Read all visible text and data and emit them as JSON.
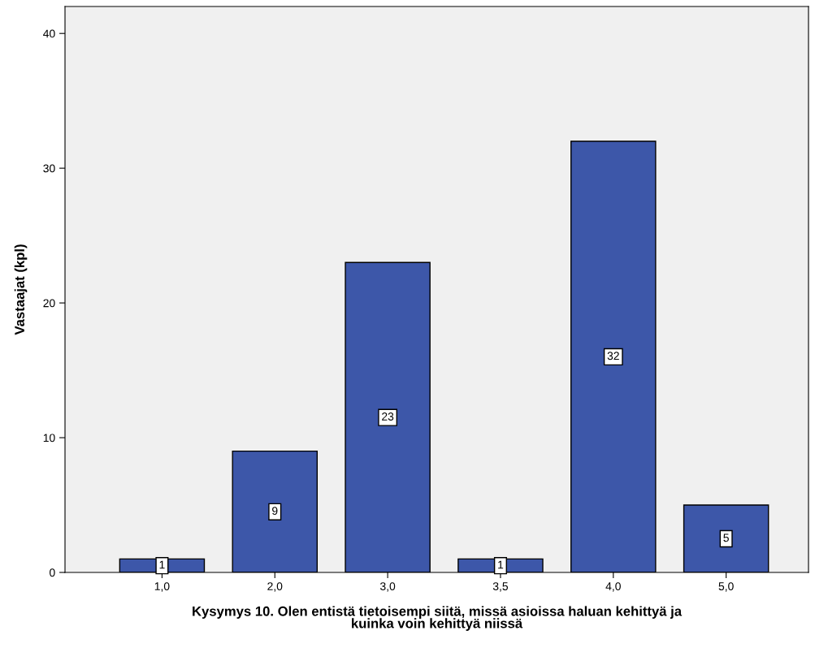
{
  "chart_data": {
    "type": "bar",
    "xlabel": "Kysymys 10. Olen entistä tietoisempi siitä, missä asioissa haluan kehittyä ja\nkuinka voin kehittyä niissä",
    "ylabel": "Vastaajat (kpl)",
    "categories": [
      "1,0",
      "2,0",
      "3,0",
      "3,5",
      "4,0",
      "5,0"
    ],
    "values": [
      1,
      9,
      23,
      1,
      32,
      5
    ],
    "color": "#3d57a9",
    "ylim": [
      0,
      42
    ],
    "yticks": [
      0,
      10,
      20,
      30,
      40
    ],
    "data_labels": true,
    "grid": false
  }
}
